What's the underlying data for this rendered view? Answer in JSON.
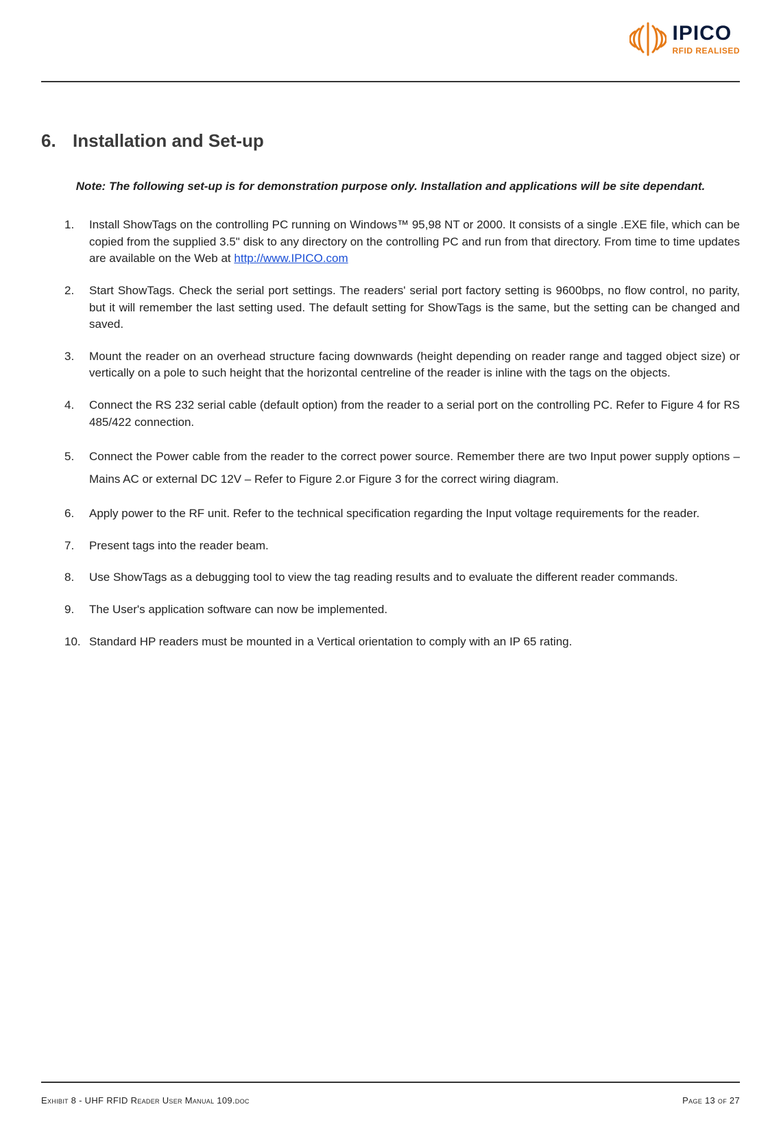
{
  "brand": {
    "name": "IPICO",
    "tagline": "RFID REALISED",
    "mark_color": "#e67a17",
    "name_color": "#0b1a3a"
  },
  "section": {
    "number": "6.",
    "title": "Installation and Set-up"
  },
  "note": "Note: The following set-up is for demonstration purpose only. Installation and applications will be site dependant.",
  "link": {
    "url_text": "http://www.IPICO.com"
  },
  "steps": [
    {
      "pre": "Install ShowTags on the controlling PC running on Windows™ 95,98 NT or 2000.  It consists of a single .EXE file, which can be copied from the supplied 3.5\" disk to any directory on the controlling PC and run from that directory. From time to time updates are available on the Web at ",
      "has_link": true
    },
    {
      "pre": "Start ShowTags.  Check the serial port settings.  The readers' serial port factory setting is 9600bps, no flow control, no parity, but it will remember the last setting used. The default setting for ShowTags is the same, but the setting can be changed and saved."
    },
    {
      "pre": "Mount the reader on an overhead structure facing downwards (height depending on reader range and tagged object size) or vertically on a pole to such height that the horizontal centreline of the reader is inline with the tags on the objects."
    },
    {
      "pre": "Connect the RS 232 serial cable (default option) from the reader to a serial port on the controlling PC. Refer to Figure 4 for RS 485/422 connection."
    },
    {
      "pre": "Connect the Power cable from the reader to the correct power source. Remember there are two Input power supply options – Mains AC or external DC 12V – Refer to Figure 2.or Figure 3 for the correct wiring diagram.",
      "spaced": true
    },
    {
      "pre": "Apply power to the RF unit. Refer to the technical specification regarding the Input voltage requirements for the reader."
    },
    {
      "pre": "Present tags into the reader beam."
    },
    {
      "pre": "Use ShowTags as a debugging tool to view the tag reading results and to evaluate the different reader commands."
    },
    {
      "pre": "The User's application software can now be implemented."
    },
    {
      "pre": "Standard HP readers must be mounted in a Vertical orientation to comply with an IP 65 rating."
    }
  ],
  "footer": {
    "left": "Exhibit 8 - UHF RFID Reader User Manual 109.doc",
    "right": "Page 13 of 27"
  }
}
